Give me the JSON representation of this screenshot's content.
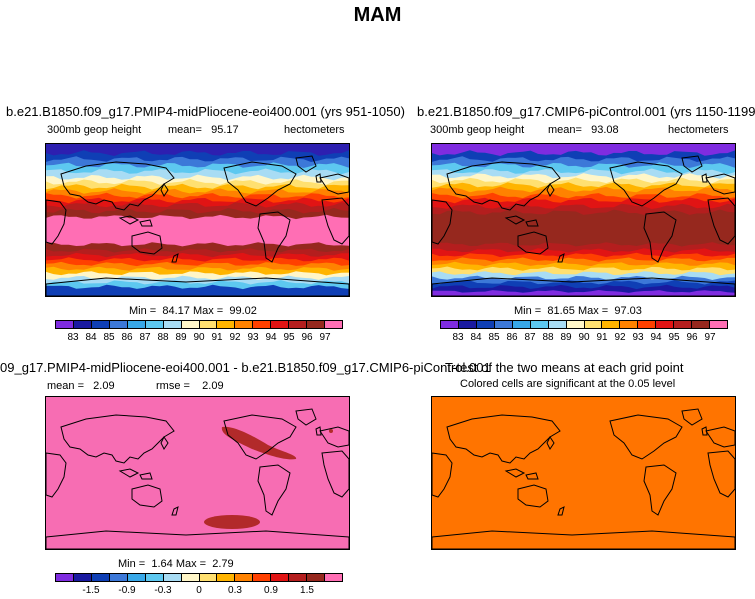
{
  "title": "MAM",
  "palette": [
    "#7f2ce0",
    "#1a1aa0",
    "#0f3fb5",
    "#3c78d8",
    "#38a8e8",
    "#5dc8f0",
    "#a8dcf4",
    "#fff6c8",
    "#ffe070",
    "#ffb400",
    "#ff8200",
    "#ff4000",
    "#e11414",
    "#b41e1e",
    "#96281e",
    "#ff6eb4"
  ],
  "colors": {
    "p1_bands": [
      "#2d1fb0",
      "#0f3fb5",
      "#3c78d8",
      "#5dc8f0",
      "#a8dcf4",
      "#fff6c8",
      "#ffe070",
      "#ffb400",
      "#ff8200",
      "#ff4000",
      "#e11414",
      "#b41e1e",
      "#96281e",
      "#ff6eb4"
    ],
    "p2_bands": [
      "#7f2ce0",
      "#1a1aa0",
      "#0f3fb5",
      "#3c78d8",
      "#5dc8f0",
      "#a8dcf4",
      "#fff6c8",
      "#ffe070",
      "#ffb400",
      "#ff8200",
      "#ff4000",
      "#e11414",
      "#b41e1e",
      "#96281e"
    ],
    "diff_bg": "#f76db3",
    "diff_patch": "#b22a2a",
    "sig_bg": "#ff7400"
  },
  "panel1": {
    "title": "b.e21.B1850.f09_g17.PMIP4-midPliocene-eoi400.001 (yrs 951-1050)",
    "field": "300mb geop height",
    "mean_label": "mean=",
    "mean_value": "95.17",
    "units": "hectometers",
    "min_label": "Min =",
    "min_value": "84.17",
    "max_label": "Max =",
    "max_value": "99.02",
    "levels": [
      "83",
      "84",
      "85",
      "86",
      "87",
      "88",
      "89",
      "90",
      "91",
      "92",
      "93",
      "94",
      "95",
      "96",
      "97"
    ]
  },
  "panel2": {
    "title": "b.e21.B1850.f09_g17.CMIP6-piControl.001 (yrs 1150-1199)",
    "field": "300mb geop height",
    "mean_label": "mean=",
    "mean_value": "93.08",
    "units": "hectometers",
    "min_label": "Min =",
    "min_value": "81.65",
    "max_label": "Max =",
    "max_value": "97.03",
    "levels": [
      "83",
      "84",
      "85",
      "86",
      "87",
      "88",
      "89",
      "90",
      "91",
      "92",
      "93",
      "94",
      "95",
      "96",
      "97"
    ]
  },
  "panel3": {
    "title": "09_g17.PMIP4-midPliocene-eoi400.001 - b.e21.B1850.f09_g17.CMIP6-piControl.001",
    "mean_label": "mean =",
    "mean_value": "2.09",
    "rmse_label": "rmse =",
    "rmse_value": "2.09",
    "min_label": "Min =",
    "min_value": "1.64",
    "max_label": "Max =",
    "max_value": "2.79",
    "levels": [
      "-1.5",
      "-0.9",
      "-0.3",
      "0",
      "0.3",
      "0.9",
      "1.5"
    ]
  },
  "panel4": {
    "title": "T-test of the two means at each grid point",
    "subtitle": "Colored cells are significant at the 0.05 level"
  },
  "chart_data": [
    {
      "type": "heatmap",
      "title": "b.e21.B1850.f09_g17.PMIP4-midPliocene-eoi400.001 (yrs 951-1050)",
      "variable": "300mb geop height",
      "units": "hectometers",
      "mean": 95.17,
      "min": 84.17,
      "max": 99.02,
      "colorbar_levels": [
        83,
        84,
        85,
        86,
        87,
        88,
        89,
        90,
        91,
        92,
        93,
        94,
        95,
        96,
        97
      ],
      "projection": "cylindrical equidistant, Pacific-centered"
    },
    {
      "type": "heatmap",
      "title": "b.e21.B1850.f09_g17.CMIP6-piControl.001 (yrs 1150-1199)",
      "variable": "300mb geop height",
      "units": "hectometers",
      "mean": 93.08,
      "min": 81.65,
      "max": 97.03,
      "colorbar_levels": [
        83,
        84,
        85,
        86,
        87,
        88,
        89,
        90,
        91,
        92,
        93,
        94,
        95,
        96,
        97
      ],
      "projection": "cylindrical equidistant, Pacific-centered"
    },
    {
      "type": "heatmap",
      "title": "09_g17.PMIP4-midPliocene-eoi400.001 - b.e21.B1850.f09_g17.CMIP6-piControl.001",
      "mean": 2.09,
      "rmse": 2.09,
      "min": 1.64,
      "max": 2.79,
      "colorbar_labels": [
        -1.5,
        -0.9,
        -0.3,
        0,
        0.3,
        0.9,
        1.5
      ]
    },
    {
      "type": "heatmap",
      "title": "T-test of the two means at each grid point",
      "subtitle": "Colored cells are significant at the 0.05 level"
    }
  ]
}
